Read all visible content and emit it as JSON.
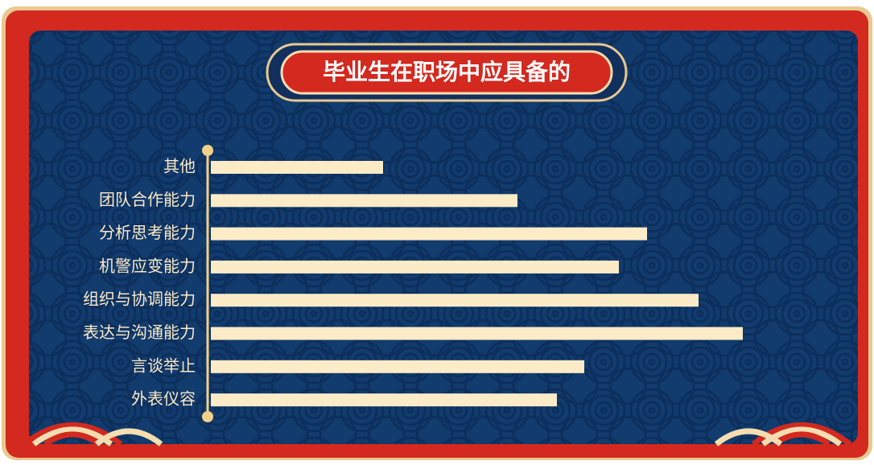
{
  "chart_data": {
    "type": "bar",
    "orientation": "horizontal",
    "title": "毕业生在职场中应具备的",
    "categories": [
      "其他",
      "团队合作能力",
      "分析思考能力",
      "机警应变能力",
      "组织与协调能力",
      "表达与沟通能力",
      "言谈举止",
      "外表仪容"
    ],
    "values": [
      214,
      381,
      542,
      507,
      606,
      661,
      464,
      430
    ],
    "color": "#fcebc7"
  }
}
